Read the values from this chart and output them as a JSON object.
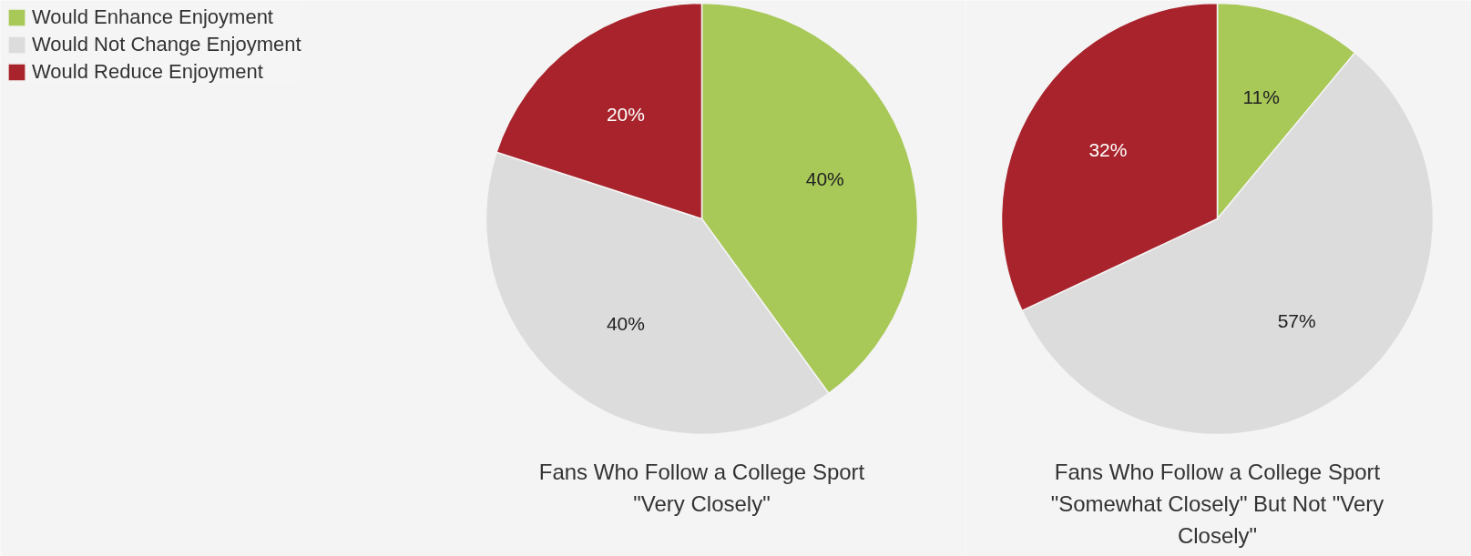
{
  "chart_data": [
    {
      "type": "pie",
      "title": "Fans Who Follow a College Sport \"Very Closely\"",
      "categories": [
        "Would Enhance Enjoyment",
        "Would Not Change Enjoyment",
        "Would Reduce Enjoyment"
      ],
      "values": [
        40,
        40,
        20
      ],
      "value_labels": [
        "40%",
        "40%",
        "20%"
      ],
      "colors": [
        "#a8c858",
        "#dcdcdc",
        "#a8232b"
      ],
      "legend": "top left"
    },
    {
      "type": "pie",
      "title": "Fans Who Follow a College Sport \"Somewhat Closely\" But Not \"Very Closely\"",
      "values": [
        11,
        57,
        32
      ],
      "value_labels": [
        "11%",
        "57%",
        "32%"
      ],
      "colors": [
        "#a8c858",
        "#dcdcdc",
        "#a8232b"
      ]
    }
  ]
}
